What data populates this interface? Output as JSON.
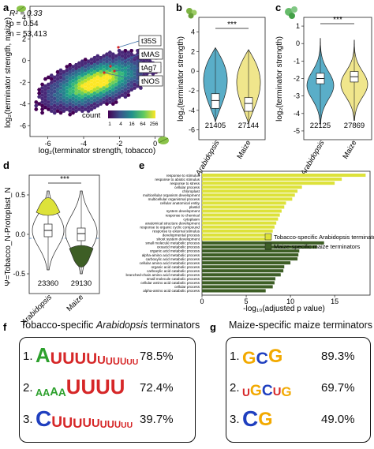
{
  "panel_a": {
    "letter": "a",
    "stats": {
      "r2": "R² = 0.33",
      "rho": "ρ = 0.54",
      "n": "n = 53,413"
    },
    "ylabel": "log₂(terminator strength, maize)",
    "xlabel": "log₂(terminator strength, tobacco)",
    "xticks": [
      "-6",
      "-4",
      "-2",
      "0"
    ],
    "yticks": [
      "4",
      "2",
      "0",
      "-2",
      "-4",
      "-6"
    ],
    "callouts": [
      "t35S",
      "tMAS",
      "tAg7",
      "tNOS"
    ],
    "colorbar": {
      "title": "count",
      "ticks": [
        "1",
        "4",
        "16",
        "64",
        "256"
      ]
    }
  },
  "panel_b": {
    "letter": "b",
    "ylabel": "log₂(terminator strength)",
    "yticks": [
      "4",
      "2",
      "0",
      "-2",
      "-4",
      "-6"
    ],
    "groups": [
      "Arabidopsis",
      "Maize"
    ],
    "counts": [
      "21405",
      "27144"
    ],
    "sig": "***",
    "colors": [
      "#5aaec8",
      "#f0e68c"
    ]
  },
  "panel_c": {
    "letter": "c",
    "ylabel": "log₂(terminator strength)",
    "yticks": [
      "1",
      "0",
      "-1",
      "-2",
      "-3",
      "-4",
      "-5"
    ],
    "groups": [
      "Arabidopsis",
      "Maize"
    ],
    "counts": [
      "22125",
      "27869"
    ],
    "sig": "***",
    "colors": [
      "#5aaec8",
      "#f0e68c"
    ]
  },
  "panel_d": {
    "letter": "d",
    "ylabel": "Ψ=Tobacco_N-Protoplast_N",
    "yticks": [
      "0.5",
      "0.0",
      "-0.5"
    ],
    "groups": [
      "Arabidopsis",
      "Maize"
    ],
    "counts": [
      "23360",
      "29130"
    ],
    "sig": "***"
  },
  "panel_e": {
    "letter": "e",
    "xlabel": "-log₁₀(adjusted p value)",
    "xticks": [
      "0",
      "5",
      "10",
      "15"
    ],
    "legend": [
      "Tobacco-specific Arabidopsis terminators",
      "Maize-specific maize terminators"
    ],
    "colors": [
      "#dde23a",
      "#3d5e25"
    ]
  },
  "chart_data": [
    {
      "type": "bar",
      "orientation": "horizontal",
      "xlabel": "-log10(adjusted p value)",
      "xlim": [
        0,
        19
      ],
      "series": [
        {
          "name": "Tobacco-specific Arabidopsis terminators",
          "categories": [
            "response to stimulus",
            "response to abiotic stimulus",
            "response to stress",
            "cellular process",
            "chloroplast",
            "multicellular organism development",
            "multicellular organismal process",
            "cellular anatomical entity",
            "plastid",
            "system development",
            "response to chemical",
            "cytoplasm",
            "anatomical structure development",
            "response to organic cyclic compound",
            "response to external stimulus",
            "developmental process",
            "shoot system development"
          ],
          "values": [
            18.5,
            15.8,
            15.0,
            11.3,
            10.8,
            10.5,
            10.2,
            9.5,
            9.3,
            9.0,
            8.8,
            8.6,
            8.4,
            8.2,
            8.0,
            7.9,
            7.8
          ]
        },
        {
          "name": "Maize-specific maize terminators",
          "categories": [
            "small molecule metabolic process",
            "oxoacid metabolic process",
            "organic acid metabolic process",
            "alpha-amino acid metabolic process",
            "carboxylic acid metabolic process",
            "cellular amino acid metabolic process",
            "organic acid catabolic process",
            "carboxylic acid catabolic process",
            "branched-chain amino acid metabolic process",
            "small molecule catabolic process",
            "cellular amino acid catabolic process",
            "cellular process",
            "alpha-amino acid catabolic process"
          ],
          "values": [
            13.8,
            13.0,
            11.0,
            10.9,
            10.8,
            10.0,
            9.3,
            9.2,
            8.9,
            8.3,
            8.2,
            8.0,
            7.2
          ]
        }
      ]
    }
  ],
  "panel_f": {
    "letter": "f",
    "title": "Tobacco-specific",
    "title_italic": "Arabidopsis",
    "title_tail": "terminators",
    "motifs": [
      {
        "num": "1.",
        "logo": "AUUUUUUUUUUU",
        "pct": "78.5%"
      },
      {
        "num": "2.",
        "logo": "AAAAUUUU",
        "pct": "72.4%"
      },
      {
        "num": "3.",
        "logo": "CUUUUUUUUUU",
        "pct": "39.7%"
      }
    ]
  },
  "panel_g": {
    "letter": "g",
    "title": "Maize-specific maize terminators",
    "motifs": [
      {
        "num": "1.",
        "logo": "GCG",
        "pct": "89.3%"
      },
      {
        "num": "2.",
        "logo": "UGCUG",
        "pct": "69.7%"
      },
      {
        "num": "3.",
        "logo": "CG",
        "pct": "49.0%"
      }
    ]
  }
}
